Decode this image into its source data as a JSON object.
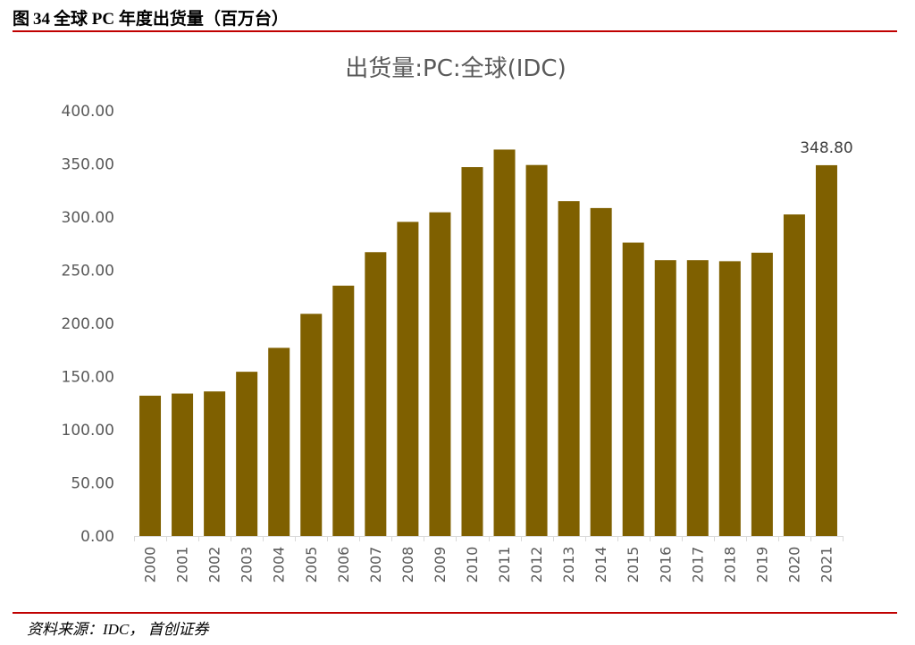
{
  "figure": {
    "label": "图",
    "number": "34",
    "caption": "全球 PC 年度出货量（百万台）",
    "source": "资料来源：IDC， 首创证券"
  },
  "chart_data": {
    "type": "bar",
    "title": "出货量:PC:全球(IDC)",
    "xlabel": "",
    "ylabel": "",
    "categories": [
      "2000",
      "2001",
      "2002",
      "2003",
      "2004",
      "2005",
      "2006",
      "2007",
      "2008",
      "2009",
      "2010",
      "2011",
      "2012",
      "2013",
      "2014",
      "2015",
      "2016",
      "2017",
      "2018",
      "2019",
      "2020",
      "2021"
    ],
    "values": [
      132.0,
      134.0,
      136.0,
      154.5,
      177.0,
      209.0,
      235.5,
      267.0,
      295.5,
      304.5,
      347.0,
      363.5,
      349.0,
      315.0,
      308.5,
      276.0,
      259.5,
      259.5,
      258.5,
      266.5,
      302.5,
      348.8
    ],
    "ylim": [
      0,
      400
    ],
    "ytick_labels": [
      "0.00",
      "50.00",
      "100.00",
      "150.00",
      "200.00",
      "250.00",
      "300.00",
      "350.00",
      "400.00"
    ],
    "data_labels": [
      {
        "category": "2021",
        "text": "348.80"
      }
    ],
    "bar_color": "#7f6000",
    "grid": false,
    "legend": "none"
  }
}
